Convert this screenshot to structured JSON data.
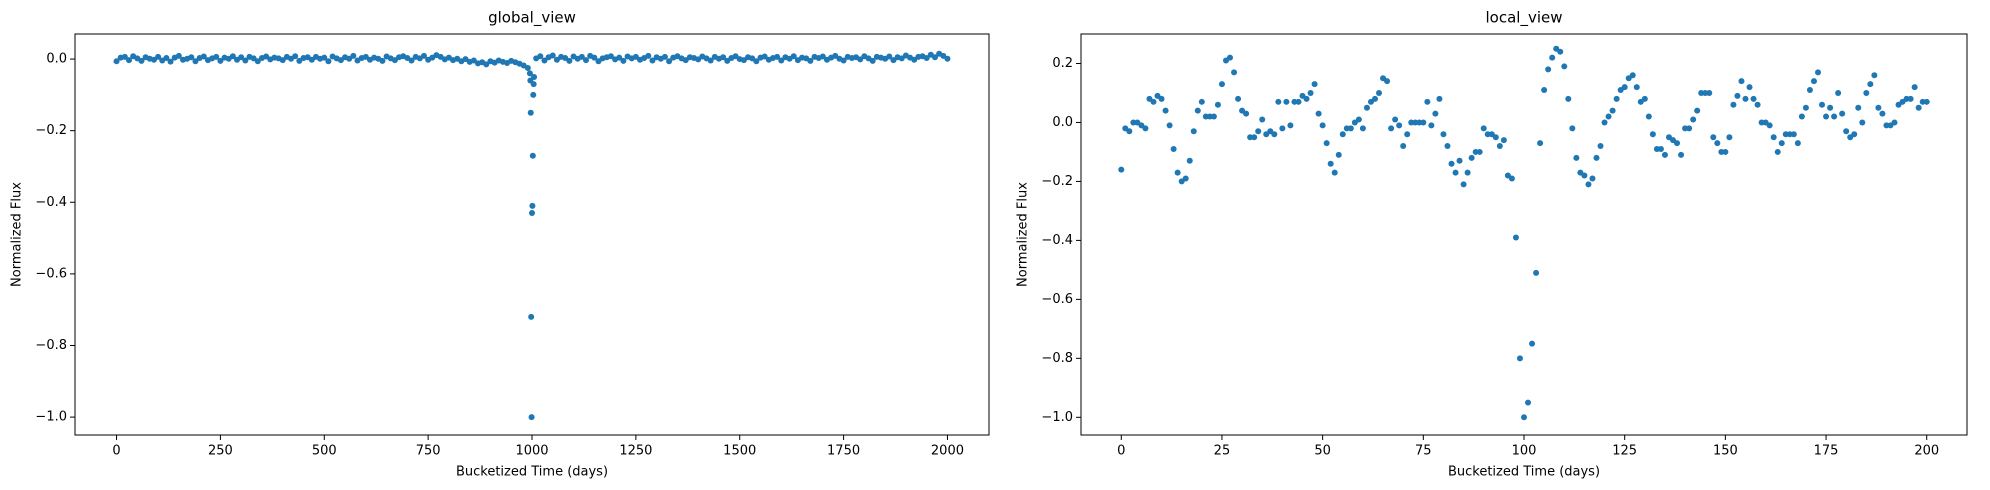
{
  "chart_data": [
    {
      "type": "scatter",
      "title": "global_view",
      "x_label": "Bucketized Time (days)",
      "y_label": "Normalized Flux",
      "color": "#1f77b4",
      "xlim": [
        -100,
        2100
      ],
      "ylim": [
        -1.05,
        0.07
      ],
      "xticks": [
        0,
        250,
        500,
        750,
        1000,
        1250,
        1500,
        1750,
        2000
      ],
      "yticks": [
        {
          "value": 0,
          "label": "0.0"
        },
        {
          "value": -0.2,
          "label": "−0.2"
        },
        {
          "value": -0.4,
          "label": "−0.4"
        },
        {
          "value": -0.6,
          "label": "−0.6"
        },
        {
          "value": -0.8,
          "label": "−0.8"
        },
        {
          "value": -1,
          "label": "−1.0"
        }
      ],
      "x": [
        0,
        10,
        20,
        30,
        40,
        50,
        60,
        70,
        80,
        90,
        100,
        110,
        120,
        130,
        140,
        150,
        160,
        170,
        180,
        190,
        200,
        210,
        220,
        230,
        240,
        250,
        260,
        270,
        280,
        290,
        300,
        310,
        320,
        330,
        340,
        350,
        360,
        370,
        380,
        390,
        400,
        410,
        420,
        430,
        440,
        450,
        460,
        470,
        480,
        490,
        500,
        510,
        520,
        530,
        540,
        550,
        560,
        570,
        580,
        590,
        600,
        610,
        620,
        630,
        640,
        650,
        660,
        670,
        680,
        690,
        700,
        710,
        720,
        730,
        740,
        750,
        760,
        770,
        780,
        790,
        800,
        810,
        820,
        830,
        840,
        850,
        860,
        870,
        880,
        890,
        900,
        910,
        920,
        930,
        940,
        950,
        960,
        970,
        980,
        990,
        995,
        996,
        997,
        998,
        999,
        1000,
        1001,
        1002,
        1003,
        1004,
        1005,
        1010,
        1020,
        1030,
        1040,
        1050,
        1060,
        1070,
        1080,
        1090,
        1100,
        1110,
        1120,
        1130,
        1140,
        1150,
        1160,
        1170,
        1180,
        1190,
        1200,
        1210,
        1220,
        1230,
        1240,
        1250,
        1260,
        1270,
        1280,
        1290,
        1300,
        1310,
        1320,
        1330,
        1340,
        1350,
        1360,
        1370,
        1380,
        1390,
        1400,
        1410,
        1420,
        1430,
        1440,
        1450,
        1460,
        1470,
        1480,
        1490,
        1500,
        1510,
        1520,
        1530,
        1540,
        1550,
        1560,
        1570,
        1580,
        1590,
        1600,
        1610,
        1620,
        1630,
        1640,
        1650,
        1660,
        1670,
        1680,
        1690,
        1700,
        1710,
        1720,
        1730,
        1740,
        1750,
        1760,
        1770,
        1780,
        1790,
        1800,
        1810,
        1820,
        1830,
        1840,
        1850,
        1860,
        1870,
        1880,
        1890,
        1900,
        1910,
        1920,
        1930,
        1940,
        1950,
        1960,
        1970,
        1980,
        1990,
        2000
      ],
      "values": [
        -0.006,
        0.004,
        0.006,
        -0.003,
        0.008,
        0.002,
        -0.005,
        0.005,
        0.001,
        -0.002,
        0.006,
        -0.004,
        0.003,
        -0.007,
        0.004,
        0.009,
        -0.002,
        0.001,
        0.005,
        -0.006,
        0.003,
        0.007,
        -0.003,
        0.002,
        0.006,
        -0.005,
        0.004,
        0.001,
        0.008,
        -0.002,
        0.005,
        -0.004,
        0.006,
        0.002,
        -0.006,
        0.003,
        0.007,
        -0.001,
        0.004,
        0.002,
        -0.003,
        0.006,
        0.001,
        0.008,
        -0.005,
        0.003,
        0.005,
        -0.002,
        0.006,
        0.001,
        0.004,
        -0.006,
        0.007,
        0.002,
        -0.003,
        0.005,
        0.001,
        0.009,
        -0.004,
        0.003,
        0.006,
        -0.002,
        0.004,
        0.001,
        -0.005,
        0.007,
        0.002,
        -0.003,
        0.005,
        0.008,
        0.003,
        -0.004,
        0.006,
        0.002,
        0.009,
        -0.002,
        0.004,
        0.011,
        0.006,
        -0.001,
        0.004,
        -0.003,
        0.001,
        -0.006,
        0,
        -0.008,
        -0.004,
        -0.012,
        -0.009,
        -0.015,
        -0.006,
        -0.01,
        -0.004,
        -0.008,
        -0.011,
        -0.005,
        -0.009,
        -0.013,
        -0.018,
        -0.025,
        -0.04,
        -0.06,
        -0.15,
        -0.72,
        -1,
        -0.43,
        -0.41,
        -0.27,
        -0.1,
        -0.07,
        -0.05,
        0.002,
        0.008,
        -0.004,
        0.005,
        0.01,
        -0.002,
        0.006,
        0.003,
        -0.005,
        0.007,
        0.001,
        0.006,
        -0.003,
        0.009,
        0.004,
        -0.006,
        0.002,
        0.005,
        0.008,
        -0.001,
        0.004,
        -0.005,
        0.007,
        0.002,
        0.006,
        -0.002,
        0.003,
        0.009,
        -0.004,
        0.005,
        0.001,
        0.006,
        -0.006,
        0.004,
        0.008,
        0.002,
        -0.003,
        0.005,
        0.003,
        -0.001,
        0.007,
        0.002,
        -0.004,
        0.006,
        0.001,
        0.005,
        -0.005,
        0.003,
        0.008,
        0,
        -0.003,
        0.005,
        0.002,
        -0.006,
        0.004,
        0.007,
        -0.002,
        0.003,
        0.006,
        -0.004,
        0.005,
        0.001,
        0.008,
        -0.003,
        0.004,
        0.002,
        -0.005,
        0.006,
        0.003,
        0.007,
        -0.002,
        0.004,
        0.009,
        0.001,
        -0.004,
        0.006,
        0.003,
        0.005,
        -0.001,
        0.008,
        0.002,
        -0.005,
        0.006,
        0.004,
        0.001,
        0.007,
        -0.003,
        0.005,
        0.002,
        0.01,
        0.004,
        -0.002,
        0.006,
        0.008,
        0.003,
        0.012,
        0.005,
        0.015,
        0.009,
        0.001
      ]
    },
    {
      "type": "scatter",
      "title": "local_view",
      "x_label": "Bucketized Time (days)",
      "y_label": "Normalized Flux",
      "color": "#1f77b4",
      "xlim": [
        -10,
        210
      ],
      "ylim": [
        -1.06,
        0.3
      ],
      "xticks": [
        0,
        25,
        50,
        75,
        100,
        125,
        150,
        175,
        200
      ],
      "yticks": [
        {
          "value": 0.2,
          "label": "0.2"
        },
        {
          "value": 0,
          "label": "0.0"
        },
        {
          "value": -0.2,
          "label": "−0.2"
        },
        {
          "value": -0.4,
          "label": "−0.4"
        },
        {
          "value": -0.6,
          "label": "−0.6"
        },
        {
          "value": -0.8,
          "label": "−0.8"
        },
        {
          "value": -1,
          "label": "−1.0"
        }
      ],
      "x": [
        0,
        1,
        2,
        3,
        4,
        5,
        6,
        7,
        8,
        9,
        10,
        11,
        12,
        13,
        14,
        15,
        16,
        17,
        18,
        19,
        20,
        21,
        22,
        23,
        24,
        25,
        26,
        27,
        28,
        29,
        30,
        31,
        32,
        33,
        34,
        35,
        36,
        37,
        38,
        39,
        40,
        41,
        42,
        43,
        44,
        45,
        46,
        47,
        48,
        49,
        50,
        51,
        52,
        53,
        54,
        55,
        56,
        57,
        58,
        59,
        60,
        61,
        62,
        63,
        64,
        65,
        66,
        67,
        68,
        69,
        70,
        71,
        72,
        73,
        74,
        75,
        76,
        77,
        78,
        79,
        80,
        81,
        82,
        83,
        84,
        85,
        86,
        87,
        88,
        89,
        90,
        91,
        92,
        93,
        94,
        95,
        96,
        97,
        98,
        99,
        100,
        101,
        102,
        103,
        104,
        105,
        106,
        107,
        108,
        109,
        110,
        111,
        112,
        113,
        114,
        115,
        116,
        117,
        118,
        119,
        120,
        121,
        122,
        123,
        124,
        125,
        126,
        127,
        128,
        129,
        130,
        131,
        132,
        133,
        134,
        135,
        136,
        137,
        138,
        139,
        140,
        141,
        142,
        143,
        144,
        145,
        146,
        147,
        148,
        149,
        150,
        151,
        152,
        153,
        154,
        155,
        156,
        157,
        158,
        159,
        160,
        161,
        162,
        163,
        164,
        165,
        166,
        167,
        168,
        169,
        170,
        171,
        172,
        173,
        174,
        175,
        176,
        177,
        178,
        179,
        180,
        181,
        182,
        183,
        184,
        185,
        186,
        187,
        188,
        189,
        190,
        191,
        192,
        193,
        194,
        195,
        196,
        197,
        198,
        199,
        200
      ],
      "values": [
        -0.16,
        -0.02,
        -0.03,
        0,
        0,
        -0.01,
        -0.02,
        0.08,
        0.07,
        0.09,
        0.08,
        0.04,
        -0.01,
        -0.09,
        -0.17,
        -0.2,
        -0.19,
        -0.13,
        -0.03,
        0.04,
        0.07,
        0.02,
        0.02,
        0.02,
        0.06,
        0.13,
        0.21,
        0.22,
        0.17,
        0.08,
        0.04,
        0.03,
        -0.05,
        -0.05,
        -0.03,
        0.01,
        -0.04,
        -0.03,
        -0.04,
        0.07,
        -0.02,
        0.07,
        -0.01,
        0.07,
        0.07,
        0.09,
        0.08,
        0.1,
        0.13,
        0.03,
        -0.01,
        -0.07,
        -0.14,
        -0.17,
        -0.11,
        -0.04,
        -0.02,
        -0.02,
        0,
        0.01,
        -0.02,
        0.05,
        0.07,
        0.08,
        0.1,
        0.15,
        0.14,
        -0.02,
        0.01,
        -0.01,
        -0.08,
        -0.04,
        0,
        0,
        0,
        0,
        0.07,
        -0.01,
        0.03,
        0.08,
        -0.04,
        -0.08,
        -0.14,
        -0.17,
        -0.13,
        -0.21,
        -0.17,
        -0.12,
        -0.1,
        -0.1,
        -0.02,
        -0.04,
        -0.04,
        -0.05,
        -0.08,
        -0.06,
        -0.18,
        -0.19,
        -0.39,
        -0.8,
        -1,
        -0.95,
        -0.75,
        -0.51,
        -0.07,
        0.11,
        0.18,
        0.22,
        0.25,
        0.24,
        0.19,
        0.08,
        -0.02,
        -0.12,
        -0.17,
        -0.18,
        -0.21,
        -0.19,
        -0.12,
        -0.08,
        0,
        0.02,
        0.04,
        0.08,
        0.11,
        0.12,
        0.15,
        0.16,
        0.12,
        0.07,
        0.08,
        0.02,
        -0.04,
        -0.09,
        -0.09,
        -0.11,
        -0.05,
        -0.06,
        -0.07,
        -0.11,
        -0.02,
        -0.02,
        0.01,
        0.04,
        0.1,
        0.1,
        0.1,
        -0.05,
        -0.07,
        -0.1,
        -0.1,
        -0.05,
        0.06,
        0.09,
        0.14,
        0.08,
        0.12,
        0.08,
        0.06,
        0,
        0,
        -0.01,
        -0.05,
        -0.1,
        -0.07,
        -0.04,
        -0.04,
        -0.04,
        -0.07,
        0.02,
        0.05,
        0.11,
        0.14,
        0.17,
        0.06,
        0.02,
        0.05,
        0.02,
        0.1,
        0.03,
        -0.03,
        -0.05,
        -0.04,
        0.05,
        0,
        0.1,
        0.13,
        0.16,
        0.05,
        0.03,
        -0.01,
        -0.01,
        0,
        0.06,
        0.07,
        0.08,
        0.08,
        0.12,
        0.05,
        0.07,
        0.07
      ]
    }
  ]
}
